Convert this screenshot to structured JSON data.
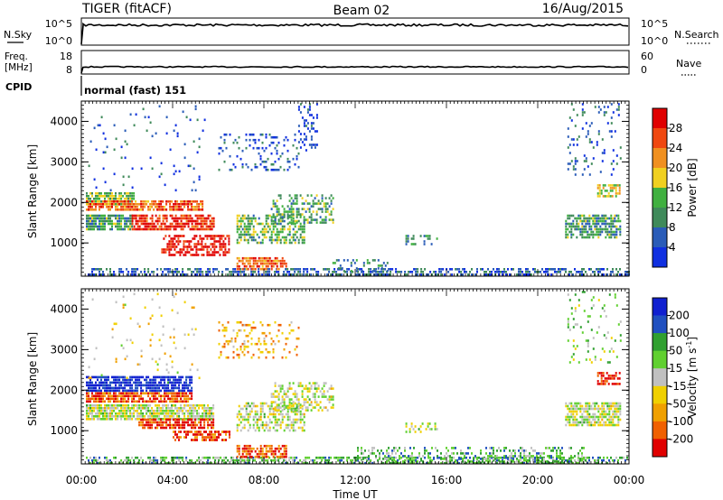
{
  "header": {
    "radar": "TIGER (fitACF)",
    "beam": "Beam 02",
    "date": "16/Aug/2015"
  },
  "nsky_panel": {
    "left_label": "N.Sky",
    "left_ticks": [
      "10^5",
      "10^0"
    ],
    "right_label": "N.Search",
    "right_ticks": [
      "10^5",
      "10^0"
    ]
  },
  "freq_panel": {
    "left_label_1": "Freq.",
    "left_label_2": "[MHz]",
    "left_ticks": [
      "18",
      "8"
    ],
    "right_label": "Nave",
    "right_ticks": [
      "60",
      "0"
    ]
  },
  "cpid_panel": {
    "label": "CPID",
    "mode_text": "normal (fast) 151"
  },
  "colors": {
    "power": [
      "#1030e0",
      "#2a5cb8",
      "#3f8a5a",
      "#40b040",
      "#f0d020",
      "#f09020",
      "#f04810",
      "#e00000"
    ],
    "velocity": [
      "#1020d0",
      "#2050c0",
      "#30a030",
      "#60d030",
      "#c0c0c0",
      "#f0d000",
      "#f0a000",
      "#f06000",
      "#e00000"
    ]
  },
  "chart_data": [
    {
      "type": "heatmap",
      "title": "",
      "xlabel": "",
      "ylabel": "Slant Range [km]",
      "x_ticks": [
        "00:00",
        "04:00",
        "08:00",
        "12:00",
        "16:00",
        "20:00",
        "00:00"
      ],
      "y_ticks": [
        "1000",
        "2000",
        "3000",
        "4000"
      ],
      "xlim_hours": [
        0,
        24
      ],
      "ylim_km": [
        180,
        4500
      ],
      "colorbar": {
        "label": "Power [dB]",
        "ticks": [
          "4",
          "8",
          "12",
          "16",
          "20",
          "24",
          "28"
        ],
        "range": [
          0,
          30
        ]
      },
      "echo_regions": [
        {
          "t0": 0.2,
          "t1": 24.0,
          "r0": 200,
          "r1": 380,
          "level": 0.2,
          "density": 0.55
        },
        {
          "t0": 0.2,
          "t1": 2.3,
          "r0": 1950,
          "r1": 2250,
          "level": 0.45,
          "density": 0.85
        },
        {
          "t0": 0.2,
          "t1": 5.3,
          "r0": 1800,
          "r1": 2050,
          "level": 0.78,
          "density": 0.8
        },
        {
          "t0": 0.2,
          "t1": 2.2,
          "r0": 1350,
          "r1": 1700,
          "level": 0.35,
          "density": 0.8
        },
        {
          "t0": 2.2,
          "t1": 5.8,
          "r0": 1300,
          "r1": 1700,
          "level": 0.9,
          "density": 0.75
        },
        {
          "t0": 3.5,
          "t1": 6.5,
          "r0": 700,
          "r1": 1200,
          "level": 0.93,
          "density": 0.6
        },
        {
          "t0": 6.8,
          "t1": 9.0,
          "r0": 350,
          "r1": 650,
          "level": 0.75,
          "density": 0.7
        },
        {
          "t0": 6.8,
          "t1": 9.8,
          "r0": 1000,
          "r1": 1700,
          "level": 0.4,
          "density": 0.55
        },
        {
          "t0": 8.3,
          "t1": 11.0,
          "r0": 1500,
          "r1": 2200,
          "level": 0.38,
          "density": 0.45
        },
        {
          "t0": 6.0,
          "t1": 9.5,
          "r0": 2800,
          "r1": 3700,
          "level": 0.15,
          "density": 0.2
        },
        {
          "t0": 9.5,
          "t1": 10.3,
          "r0": 3300,
          "r1": 4450,
          "level": 0.12,
          "density": 0.3
        },
        {
          "t0": 11.0,
          "t1": 13.5,
          "r0": 300,
          "r1": 600,
          "level": 0.3,
          "density": 0.25
        },
        {
          "t0": 14.2,
          "t1": 15.6,
          "r0": 950,
          "r1": 1200,
          "level": 0.3,
          "density": 0.4
        },
        {
          "t0": 21.2,
          "t1": 23.6,
          "r0": 1100,
          "r1": 1700,
          "level": 0.35,
          "density": 0.7
        },
        {
          "t0": 22.6,
          "t1": 23.6,
          "r0": 2150,
          "r1": 2450,
          "level": 0.55,
          "density": 0.6
        },
        {
          "t0": 21.3,
          "t1": 23.6,
          "r0": 2700,
          "r1": 4450,
          "level": 0.2,
          "density": 0.12
        },
        {
          "t0": 0.3,
          "t1": 5.5,
          "r0": 2300,
          "r1": 4400,
          "level": 0.15,
          "density": 0.04
        }
      ]
    },
    {
      "type": "heatmap",
      "title": "",
      "xlabel": "Time UT",
      "ylabel": "Slant Range [km]",
      "x_ticks": [
        "00:00",
        "04:00",
        "08:00",
        "12:00",
        "16:00",
        "20:00",
        "00:00"
      ],
      "y_ticks": [
        "1000",
        "2000",
        "3000",
        "4000"
      ],
      "xlim_hours": [
        0,
        24
      ],
      "ylim_km": [
        180,
        4500
      ],
      "colorbar": {
        "label": "Velocity [m s^-1]",
        "ticks": [
          "200",
          "100",
          "50",
          "15",
          "-15",
          "-50",
          "-100",
          "-200"
        ],
        "range": [
          -250,
          250
        ]
      },
      "echo_regions": [
        {
          "t0": 0.2,
          "t1": 24.0,
          "r0": 200,
          "r1": 360,
          "level": 0.35,
          "density": 0.55
        },
        {
          "t0": 12.0,
          "t1": 22.0,
          "r0": 260,
          "r1": 600,
          "level": 0.35,
          "density": 0.35
        },
        {
          "t0": 0.2,
          "t1": 4.8,
          "r0": 2000,
          "r1": 2350,
          "level": 0.05,
          "density": 0.8
        },
        {
          "t0": 0.2,
          "t1": 4.8,
          "r0": 1700,
          "r1": 1950,
          "level": 0.85,
          "density": 0.85
        },
        {
          "t0": 0.2,
          "t1": 5.8,
          "r0": 1300,
          "r1": 1650,
          "level": 0.5,
          "density": 0.85
        },
        {
          "t0": 2.5,
          "t1": 5.8,
          "r0": 1050,
          "r1": 1300,
          "level": 0.92,
          "density": 0.75
        },
        {
          "t0": 4.0,
          "t1": 6.5,
          "r0": 750,
          "r1": 1000,
          "level": 0.9,
          "density": 0.6
        },
        {
          "t0": 6.8,
          "t1": 9.0,
          "r0": 350,
          "r1": 650,
          "level": 0.85,
          "density": 0.7
        },
        {
          "t0": 6.8,
          "t1": 9.8,
          "r0": 1000,
          "r1": 1700,
          "level": 0.5,
          "density": 0.55
        },
        {
          "t0": 8.3,
          "t1": 11.0,
          "r0": 1500,
          "r1": 2200,
          "level": 0.5,
          "density": 0.45
        },
        {
          "t0": 6.0,
          "t1": 9.5,
          "r0": 2800,
          "r1": 3700,
          "level": 0.7,
          "density": 0.2
        },
        {
          "t0": 14.2,
          "t1": 15.6,
          "r0": 950,
          "r1": 1200,
          "level": 0.5,
          "density": 0.4
        },
        {
          "t0": 21.2,
          "t1": 23.6,
          "r0": 1100,
          "r1": 1700,
          "level": 0.5,
          "density": 0.7
        },
        {
          "t0": 22.6,
          "t1": 23.6,
          "r0": 2150,
          "r1": 2450,
          "level": 0.95,
          "density": 0.6
        },
        {
          "t0": 21.3,
          "t1": 23.6,
          "r0": 2700,
          "r1": 4450,
          "level": 0.4,
          "density": 0.12
        },
        {
          "t0": 0.3,
          "t1": 5.5,
          "r0": 2300,
          "r1": 4400,
          "level": 0.6,
          "density": 0.04
        }
      ]
    }
  ]
}
